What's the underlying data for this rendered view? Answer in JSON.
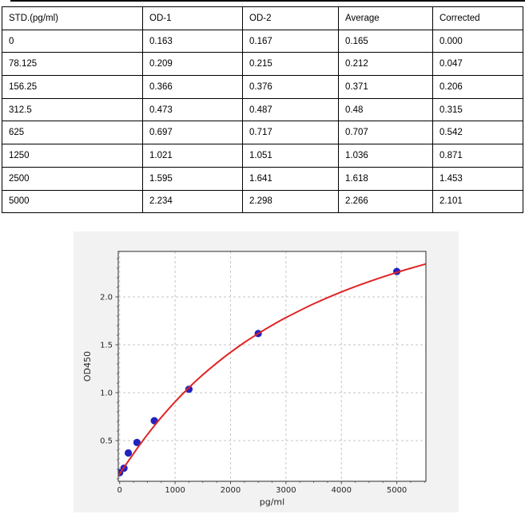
{
  "table": {
    "headers": [
      "STD.(pg/ml)",
      "OD-1",
      "OD-2",
      "Average",
      "Corrected"
    ],
    "rows": [
      [
        "0",
        "0.163",
        "0.167",
        "0.165",
        "0.000"
      ],
      [
        "78.125",
        "0.209",
        "0.215",
        "0.212",
        "0.047"
      ],
      [
        "156.25",
        "0.366",
        "0.376",
        "0.371",
        "0.206"
      ],
      [
        "312.5",
        "0.473",
        "0.487",
        "0.48",
        "0.315"
      ],
      [
        "625",
        "0.697",
        "0.717",
        "0.707",
        "0.542"
      ],
      [
        "1250",
        "1.021",
        "1.051",
        "1.036",
        "0.871"
      ],
      [
        "2500",
        "1.595",
        "1.641",
        "1.618",
        "1.453"
      ],
      [
        "5000",
        "2.234",
        "2.298",
        "2.266",
        "2.101"
      ]
    ]
  },
  "chart_data": {
    "type": "scatter",
    "xlabel": "pg/ml",
    "ylabel": "OD450",
    "xlim": [
      -25,
      5525
    ],
    "ylim": [
      0.075,
      2.475
    ],
    "x_ticks": [
      0,
      1000,
      2000,
      3000,
      4000,
      5000
    ],
    "y_ticks": [
      0.5,
      1.0,
      1.5,
      2.0
    ],
    "x_minor_step": 250,
    "y_minor_step": 0.1,
    "grid": "dashed",
    "legend": "none",
    "colors": {
      "figure_bg": "#f2f2f2",
      "plot_bg": "#ffffff",
      "spine": "#4d4d4d",
      "grid": "#c6c6c6",
      "tick": "#4d4d4d",
      "point": "#2222c0",
      "curve": "#e02424"
    },
    "series": [
      {
        "name": "standard-points",
        "type": "scatter",
        "x": [
          0,
          78.125,
          156.25,
          312.5,
          625,
          1250,
          2500,
          5000
        ],
        "y": [
          0.165,
          0.212,
          0.371,
          0.48,
          0.707,
          1.036,
          1.618,
          2.266
        ]
      },
      {
        "name": "fit-curve",
        "type": "line",
        "points": [
          [
            -25,
            0.135
          ],
          [
            0,
            0.152
          ],
          [
            50,
            0.196
          ],
          [
            100,
            0.238
          ],
          [
            200,
            0.322
          ],
          [
            300,
            0.405
          ],
          [
            400,
            0.485
          ],
          [
            500,
            0.562
          ],
          [
            625,
            0.654
          ],
          [
            750,
            0.742
          ],
          [
            1000,
            0.905
          ],
          [
            1250,
            1.053
          ],
          [
            1500,
            1.187
          ],
          [
            1750,
            1.309
          ],
          [
            2000,
            1.421
          ],
          [
            2250,
            1.524
          ],
          [
            2500,
            1.617
          ],
          [
            2750,
            1.704
          ],
          [
            3000,
            1.784
          ],
          [
            3500,
            1.928
          ],
          [
            4000,
            2.052
          ],
          [
            4500,
            2.16
          ],
          [
            5000,
            2.256
          ],
          [
            5250,
            2.299
          ],
          [
            5525,
            2.344
          ]
        ]
      }
    ]
  }
}
